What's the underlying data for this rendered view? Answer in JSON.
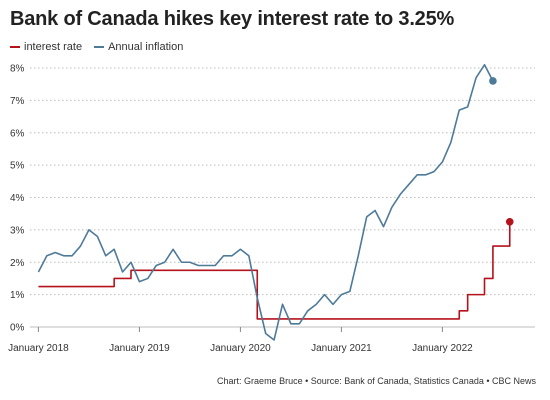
{
  "chart_data": {
    "type": "line",
    "title": "Bank of Canada hikes key interest rate to 3.25%",
    "xlabel": "",
    "ylabel": "",
    "ylim": [
      0,
      8
    ],
    "y_ticks": [
      "0%",
      "1%",
      "2%",
      "3%",
      "4%",
      "5%",
      "6%",
      "7%",
      "8%"
    ],
    "x_ticks": [
      {
        "label": "January 2018",
        "x": "2018-01"
      },
      {
        "label": "January 2019",
        "x": "2019-01"
      },
      {
        "label": "January 2020",
        "x": "2020-01"
      },
      {
        "label": "January 2021",
        "x": "2021-01"
      },
      {
        "label": "January 2022",
        "x": "2022-01"
      }
    ],
    "grid": "horizontal dotted",
    "legend_position": "top-left",
    "series": [
      {
        "name": "interest rate",
        "color": "#b5121b",
        "step": true,
        "end_marker": true,
        "points": [
          [
            "2018-01",
            1.25
          ],
          [
            "2018-07",
            1.25
          ],
          [
            "2018-10",
            1.5
          ],
          [
            "2018-12",
            1.75
          ],
          [
            "2019-12",
            1.75
          ],
          [
            "2020-03",
            0.25
          ],
          [
            "2021-12",
            0.25
          ],
          [
            "2022-03",
            0.5
          ],
          [
            "2022-04",
            1.0
          ],
          [
            "2022-06",
            1.5
          ],
          [
            "2022-07",
            2.5
          ],
          [
            "2022-09",
            3.25
          ]
        ]
      },
      {
        "name": "Annual inflation",
        "color": "#4d7a99",
        "step": false,
        "end_marker": true,
        "points": [
          [
            "2018-01",
            1.7
          ],
          [
            "2018-02",
            2.2
          ],
          [
            "2018-03",
            2.3
          ],
          [
            "2018-04",
            2.2
          ],
          [
            "2018-05",
            2.2
          ],
          [
            "2018-06",
            2.5
          ],
          [
            "2018-07",
            3.0
          ],
          [
            "2018-08",
            2.8
          ],
          [
            "2018-09",
            2.2
          ],
          [
            "2018-10",
            2.4
          ],
          [
            "2018-11",
            1.7
          ],
          [
            "2018-12",
            2.0
          ],
          [
            "2019-01",
            1.4
          ],
          [
            "2019-02",
            1.5
          ],
          [
            "2019-03",
            1.9
          ],
          [
            "2019-04",
            2.0
          ],
          [
            "2019-05",
            2.4
          ],
          [
            "2019-06",
            2.0
          ],
          [
            "2019-07",
            2.0
          ],
          [
            "2019-08",
            1.9
          ],
          [
            "2019-09",
            1.9
          ],
          [
            "2019-10",
            1.9
          ],
          [
            "2019-11",
            2.2
          ],
          [
            "2019-12",
            2.2
          ],
          [
            "2020-01",
            2.4
          ],
          [
            "2020-02",
            2.2
          ],
          [
            "2020-03",
            0.9
          ],
          [
            "2020-04",
            -0.2
          ],
          [
            "2020-05",
            -0.4
          ],
          [
            "2020-06",
            0.7
          ],
          [
            "2020-07",
            0.1
          ],
          [
            "2020-08",
            0.1
          ],
          [
            "2020-09",
            0.5
          ],
          [
            "2020-10",
            0.7
          ],
          [
            "2020-11",
            1.0
          ],
          [
            "2020-12",
            0.7
          ],
          [
            "2021-01",
            1.0
          ],
          [
            "2021-02",
            1.1
          ],
          [
            "2021-03",
            2.2
          ],
          [
            "2021-04",
            3.4
          ],
          [
            "2021-05",
            3.6
          ],
          [
            "2021-06",
            3.1
          ],
          [
            "2021-07",
            3.7
          ],
          [
            "2021-08",
            4.1
          ],
          [
            "2021-09",
            4.4
          ],
          [
            "2021-10",
            4.7
          ],
          [
            "2021-11",
            4.7
          ],
          [
            "2021-12",
            4.8
          ],
          [
            "2022-01",
            5.1
          ],
          [
            "2022-02",
            5.7
          ],
          [
            "2022-03",
            6.7
          ],
          [
            "2022-04",
            6.8
          ],
          [
            "2022-05",
            7.7
          ],
          [
            "2022-06",
            8.1
          ],
          [
            "2022-07",
            7.6
          ]
        ]
      }
    ]
  },
  "source": "Chart: Graeme Bruce • Source: Bank of Canada, Statistics Canada • CBC News"
}
